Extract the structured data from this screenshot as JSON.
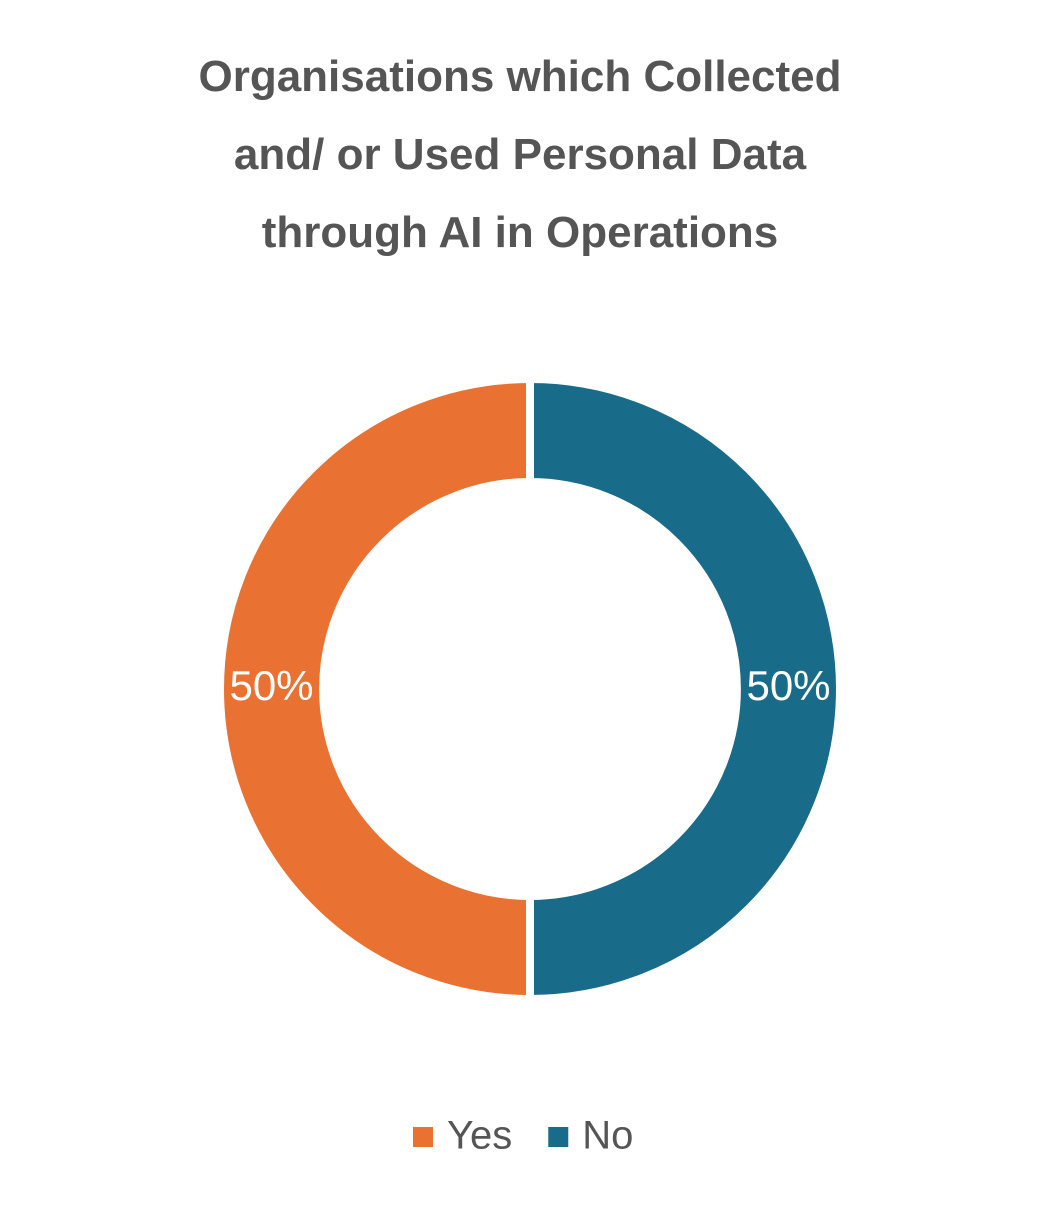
{
  "chart_data": {
    "type": "donut",
    "title": "Organisations which Collected and/ or Used Personal Data through AI in Operations",
    "categories": [
      "Yes",
      "No"
    ],
    "values": [
      50,
      50
    ],
    "value_labels": [
      "50%",
      "50%"
    ],
    "colors": [
      "#e97132",
      "#196b8a"
    ],
    "legend": "bottom"
  }
}
